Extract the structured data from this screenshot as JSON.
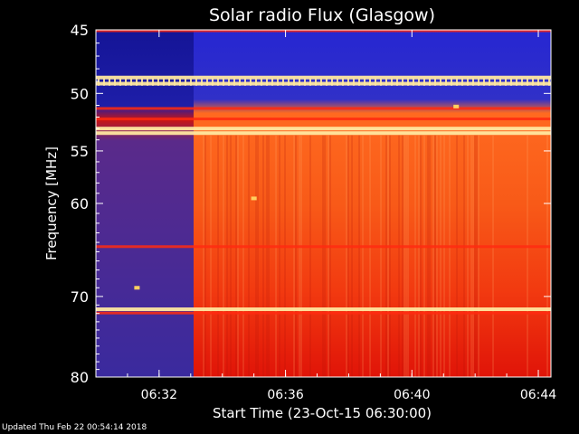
{
  "footer_text": "Updated Thu Feb 22 00:54:14 2018",
  "chart_data": {
    "type": "heatmap",
    "title": "Solar radio Flux (Glasgow)",
    "xlabel": "Start Time (23-Oct-15 06:30:00)",
    "ylabel": "Frequency [MHz]",
    "x_unit": "minutes after 06:30",
    "xlim": [
      0,
      14.4
    ],
    "ylim": [
      80,
      45
    ],
    "y_scale": "log",
    "x_ticks": [
      {
        "value": 2,
        "label": "06:32"
      },
      {
        "value": 6,
        "label": "06:36"
      },
      {
        "value": 10,
        "label": "06:40"
      },
      {
        "value": 14,
        "label": "06:44"
      }
    ],
    "y_ticks": [
      {
        "value": 45,
        "label": "45"
      },
      {
        "value": 50,
        "label": "50"
      },
      {
        "value": 55,
        "label": "55"
      },
      {
        "value": 60,
        "label": "60"
      },
      {
        "value": 70,
        "label": "70"
      },
      {
        "value": 80,
        "label": "80"
      }
    ],
    "background_transition_minute": 3.25,
    "colors": {
      "quiet_top": "#1a1aa8",
      "quiet_bottom": "#3a2a9a",
      "burst_top": "#2a2ad0",
      "burst_middle": "#f5561a",
      "burst_bottom": "#e81a08",
      "band_bright": "#ffe8a0",
      "band_red": "#ff2a10"
    },
    "horizontal_bands": [
      {
        "freq": 45.1,
        "kind": "red"
      },
      {
        "freq": 48.7,
        "kind": "bright"
      },
      {
        "freq": 49.2,
        "kind": "bright"
      },
      {
        "freq": 51.3,
        "kind": "red"
      },
      {
        "freq": 52.2,
        "kind": "red"
      },
      {
        "freq": 53.0,
        "kind": "bright"
      },
      {
        "freq": 53.4,
        "kind": "bright"
      },
      {
        "freq": 64.5,
        "kind": "red"
      },
      {
        "freq": 71.5,
        "kind": "bright"
      },
      {
        "freq": 72.0,
        "kind": "red"
      }
    ],
    "spots": [
      {
        "x": 5.0,
        "freq": 59.5
      },
      {
        "x": 11.4,
        "freq": 51.1
      },
      {
        "x": 1.3,
        "freq": 69.0
      }
    ]
  }
}
